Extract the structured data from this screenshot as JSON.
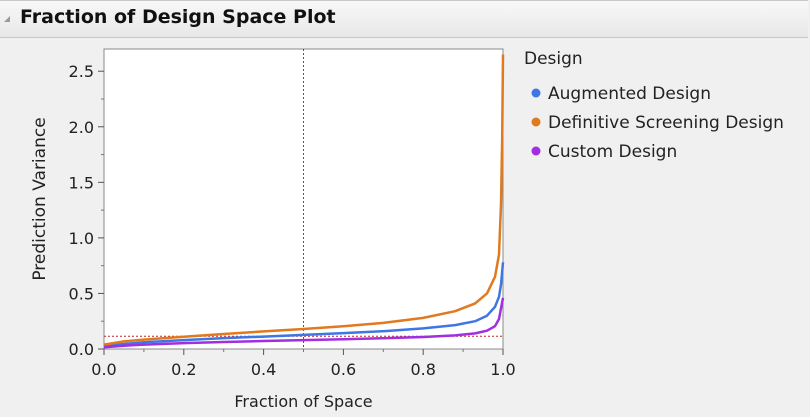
{
  "header": {
    "title": "Fraction of Design Space Plot",
    "disclosure_icon": "disclosure-triangle-icon"
  },
  "chart_data": {
    "type": "line",
    "xlabel": "Fraction of Space",
    "ylabel": "Prediction Variance",
    "xlim": [
      0,
      1
    ],
    "ylim": [
      0,
      2.7
    ],
    "xticks": [
      "0.0",
      "0.2",
      "0.4",
      "0.6",
      "0.8",
      "1.0"
    ],
    "yticks": [
      "0.0",
      "0.5",
      "1.0",
      "1.5",
      "2.0",
      "2.5"
    ],
    "legend_title": "Design",
    "legend_position": "right",
    "reference_lines": {
      "x": 0.5,
      "y": 0.115,
      "color": "#c0282d"
    },
    "series": [
      {
        "name": "Augmented Design",
        "color": "#3e76e4",
        "x": [
          0.0,
          0.05,
          0.1,
          0.2,
          0.3,
          0.4,
          0.5,
          0.6,
          0.7,
          0.8,
          0.88,
          0.93,
          0.96,
          0.98,
          0.99,
          0.995,
          1.0
        ],
        "y": [
          0.025,
          0.045,
          0.06,
          0.08,
          0.098,
          0.112,
          0.127,
          0.143,
          0.16,
          0.185,
          0.215,
          0.25,
          0.3,
          0.38,
          0.47,
          0.58,
          0.78
        ]
      },
      {
        "name": "Definitive Screening Design",
        "color": "#e07a1f",
        "x": [
          0.0,
          0.05,
          0.1,
          0.2,
          0.3,
          0.4,
          0.5,
          0.6,
          0.7,
          0.8,
          0.88,
          0.93,
          0.96,
          0.98,
          0.99,
          0.995,
          0.998,
          1.0
        ],
        "y": [
          0.04,
          0.068,
          0.085,
          0.11,
          0.135,
          0.158,
          0.18,
          0.205,
          0.235,
          0.28,
          0.34,
          0.41,
          0.5,
          0.65,
          0.85,
          1.3,
          1.9,
          2.65
        ]
      },
      {
        "name": "Custom Design",
        "color": "#a12ee0",
        "x": [
          0.0,
          0.05,
          0.1,
          0.2,
          0.3,
          0.4,
          0.5,
          0.6,
          0.7,
          0.8,
          0.88,
          0.93,
          0.96,
          0.98,
          0.99,
          1.0
        ],
        "y": [
          0.015,
          0.03,
          0.04,
          0.053,
          0.063,
          0.072,
          0.08,
          0.088,
          0.097,
          0.108,
          0.122,
          0.14,
          0.165,
          0.205,
          0.27,
          0.46
        ]
      }
    ]
  }
}
